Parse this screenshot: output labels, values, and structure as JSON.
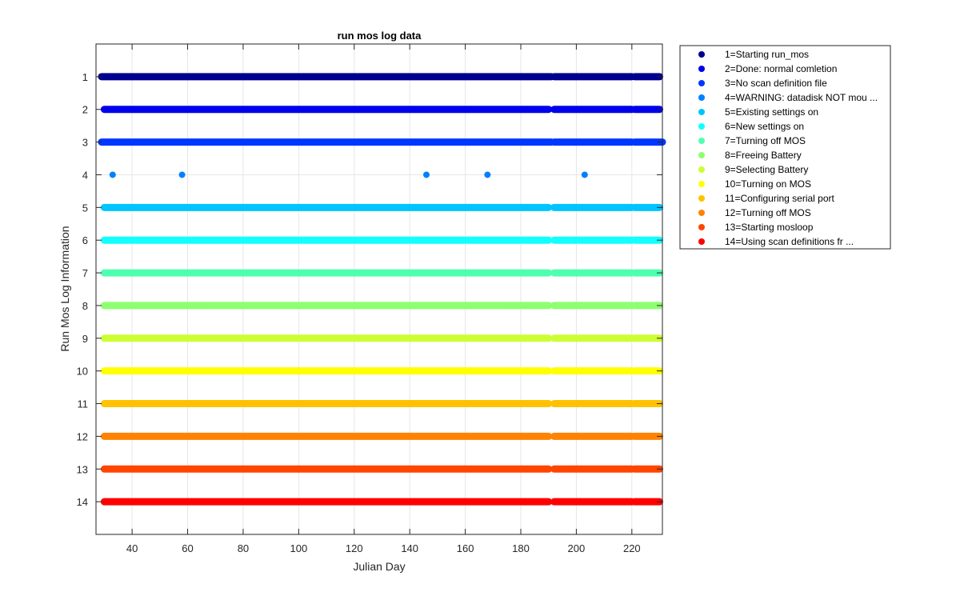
{
  "chart_data": {
    "type": "scatter",
    "title": "run mos log data",
    "xlabel": "Julian Day",
    "ylabel": "Run Mos Log Information",
    "xlim": [
      27,
      231
    ],
    "ylim": [
      0,
      15
    ],
    "y_reversed": true,
    "grid": true,
    "x_ticks": [
      40,
      60,
      80,
      100,
      120,
      140,
      160,
      180,
      200,
      220
    ],
    "y_ticks": [
      1,
      2,
      3,
      4,
      5,
      6,
      7,
      8,
      9,
      10,
      11,
      12,
      13,
      14
    ],
    "legend_position": "outside-top-right",
    "series": [
      {
        "name": "1=Starting run_mos",
        "y": 1,
        "color": "#00008f",
        "segments": [
          [
            29,
            191
          ],
          [
            192,
            220
          ],
          [
            221,
            230
          ]
        ]
      },
      {
        "name": "2=Done: normal comletion",
        "y": 2,
        "color": "#0000ea",
        "segments": [
          [
            30,
            190
          ],
          [
            192,
            220
          ],
          [
            221,
            230
          ]
        ]
      },
      {
        "name": "3=No scan definition file",
        "y": 3,
        "color": "#0036ff",
        "segments": [
          [
            29,
            191
          ],
          [
            192,
            220
          ],
          [
            221,
            231
          ]
        ]
      },
      {
        "name": "4=WARNING: datadisk NOT mou ...",
        "y": 4,
        "color": "#0080ff",
        "points": [
          33,
          58,
          146,
          168,
          203
        ]
      },
      {
        "name": "5=Existing settings on",
        "y": 5,
        "color": "#00c4ff",
        "segments": [
          [
            30,
            190
          ],
          [
            192,
            220
          ],
          [
            221,
            230
          ]
        ]
      },
      {
        "name": "6=New settings on",
        "y": 6,
        "color": "#12ffff",
        "segments": [
          [
            30,
            190
          ],
          [
            192,
            220
          ],
          [
            221,
            230
          ]
        ]
      },
      {
        "name": "7=Turning off MOS",
        "y": 7,
        "color": "#4fffb0",
        "segments": [
          [
            30,
            190
          ],
          [
            192,
            220
          ],
          [
            221,
            230
          ]
        ]
      },
      {
        "name": "8=Freeing Battery",
        "y": 8,
        "color": "#8dff70",
        "segments": [
          [
            30,
            190
          ],
          [
            192,
            220
          ],
          [
            221,
            230
          ]
        ]
      },
      {
        "name": "9=Selecting Battery",
        "y": 9,
        "color": "#ccff33",
        "segments": [
          [
            30,
            190
          ],
          [
            192,
            220
          ],
          [
            221,
            230
          ]
        ]
      },
      {
        "name": "10=Turning on MOS",
        "y": 10,
        "color": "#ffff00",
        "segments": [
          [
            30,
            190
          ],
          [
            192,
            220
          ],
          [
            221,
            230
          ]
        ]
      },
      {
        "name": "11=Configuring serial port",
        "y": 11,
        "color": "#ffc200",
        "segments": [
          [
            30,
            190
          ],
          [
            192,
            220
          ],
          [
            221,
            230
          ]
        ]
      },
      {
        "name": "12=Turning off MOS",
        "y": 12,
        "color": "#ff8300",
        "segments": [
          [
            30,
            190
          ],
          [
            192,
            220
          ],
          [
            221,
            230
          ]
        ]
      },
      {
        "name": "13=Starting mosloop",
        "y": 13,
        "color": "#ff4500",
        "segments": [
          [
            30,
            190
          ],
          [
            192,
            220
          ],
          [
            221,
            230
          ]
        ]
      },
      {
        "name": "14=Using scan definitions fr ...",
        "y": 14,
        "color": "#ff0000",
        "segments": [
          [
            30,
            190
          ],
          [
            192,
            220
          ],
          [
            221,
            230
          ]
        ]
      }
    ]
  }
}
